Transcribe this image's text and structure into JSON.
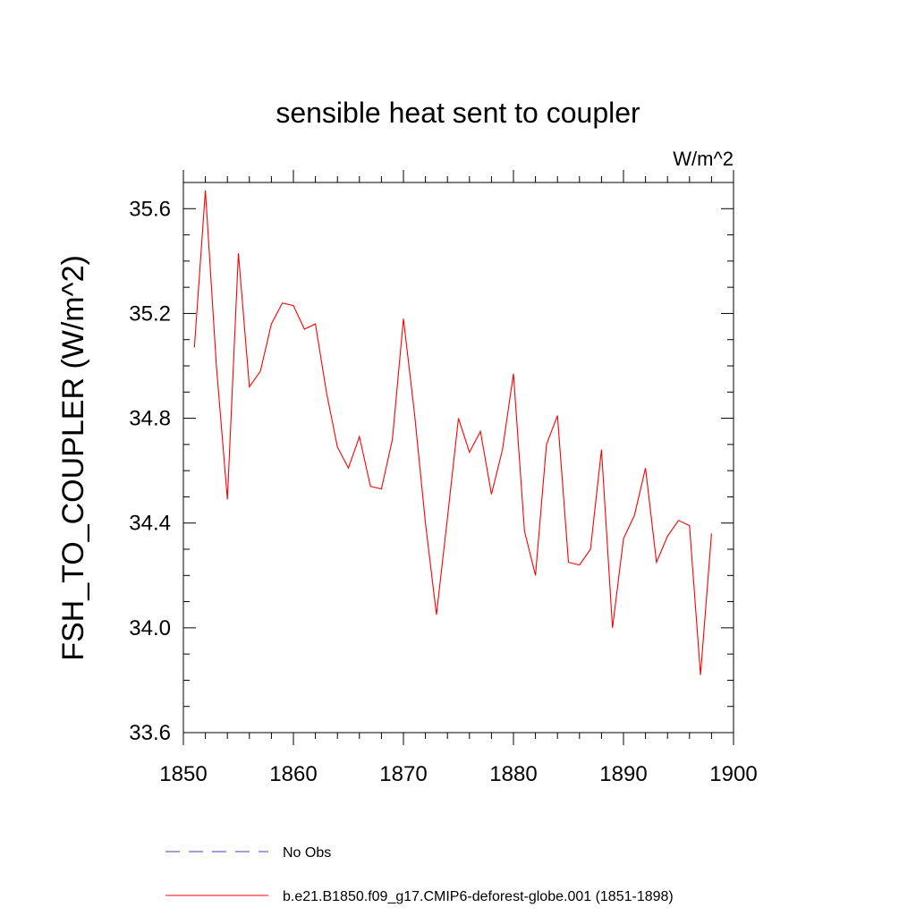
{
  "chart_data": {
    "type": "line",
    "title": "sensible heat sent to coupler",
    "units_label": "W/m^2",
    "xlabel": "",
    "ylabel": "FSH_TO_COUPLER  (W/m^2)",
    "xlim": [
      1850,
      1900
    ],
    "ylim": [
      33.6,
      35.7
    ],
    "x_ticks": [
      1850,
      1860,
      1870,
      1880,
      1890,
      1900
    ],
    "x_tick_labels": [
      "1850",
      "1860",
      "1870",
      "1880",
      "1890",
      "1900"
    ],
    "y_ticks": [
      33.6,
      34.0,
      34.4,
      34.8,
      35.2,
      35.6
    ],
    "y_tick_labels": [
      "33.6",
      "34.0",
      "34.4",
      "34.8",
      "35.2",
      "35.6"
    ],
    "grid": false,
    "legend_position": "bottom",
    "series": [
      {
        "name": "b.e21.B1850.f09_g17.CMIP6-deforest-globe.001 (1851-1898)",
        "color": "#ff0000",
        "style": "solid",
        "x": [
          1851,
          1852,
          1853,
          1854,
          1855,
          1856,
          1857,
          1858,
          1859,
          1860,
          1861,
          1862,
          1863,
          1864,
          1865,
          1866,
          1867,
          1868,
          1869,
          1870,
          1871,
          1872,
          1873,
          1874,
          1875,
          1876,
          1877,
          1878,
          1879,
          1880,
          1881,
          1882,
          1883,
          1884,
          1885,
          1886,
          1887,
          1888,
          1889,
          1890,
          1891,
          1892,
          1893,
          1894,
          1895,
          1896,
          1897,
          1898
        ],
        "y": [
          35.07,
          35.67,
          35.0,
          34.49,
          35.43,
          34.92,
          34.98,
          35.16,
          35.24,
          35.23,
          35.14,
          35.16,
          34.9,
          34.69,
          34.61,
          34.73,
          34.54,
          34.53,
          34.72,
          35.18,
          34.82,
          34.4,
          34.05,
          34.42,
          34.8,
          34.67,
          34.75,
          34.51,
          34.68,
          34.97,
          34.37,
          34.2,
          34.7,
          34.81,
          34.25,
          34.24,
          34.3,
          34.68,
          34.0,
          34.34,
          34.43,
          34.61,
          34.25,
          34.35,
          34.41,
          34.39,
          33.82,
          34.36
        ]
      }
    ],
    "legend": [
      {
        "label": "No Obs",
        "color": "#4040c0",
        "style": "dashed"
      },
      {
        "label": "b.e21.B1850.f09_g17.CMIP6-deforest-globe.001 (1851-1898)",
        "color": "#ff0000",
        "style": "solid"
      }
    ]
  }
}
